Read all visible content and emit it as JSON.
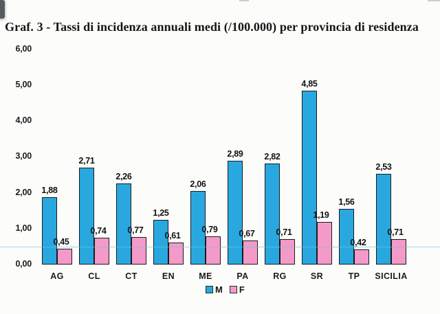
{
  "title": "Graf. 3 - Tassi di incidenza annuali medi (/100.000) per provincia di residenza",
  "colors": {
    "male_bar": "#29a8e0",
    "female_bar": "#f49ac9",
    "bar_outline": "#1a1a1a",
    "reference_line": "#69c4d8",
    "text": "#161616"
  },
  "chart_data": {
    "type": "bar",
    "title": "Graf. 3 - Tassi di incidenza annuali medi (/100.000) per provincia di residenza",
    "categories": [
      "AG",
      "CL",
      "CT",
      "EN",
      "ME",
      "PA",
      "RG",
      "SR",
      "TP",
      "SICILIA"
    ],
    "series": [
      {
        "name": "M",
        "color": "#29a8e0",
        "values": [
          1.88,
          2.71,
          2.26,
          1.25,
          2.06,
          2.89,
          2.82,
          4.85,
          1.56,
          2.53
        ],
        "labels": [
          "1,88",
          "2,71",
          "2,26",
          "1,25",
          "2,06",
          "2,89",
          "2,82",
          "4,85",
          "1,56",
          "2,53"
        ]
      },
      {
        "name": "F",
        "color": "#f49ac9",
        "values": [
          0.45,
          0.74,
          0.77,
          0.61,
          0.79,
          0.67,
          0.71,
          1.19,
          0.42,
          0.71
        ],
        "labels": [
          "0,45",
          "0,74",
          "0,77",
          "0,61",
          "0,79",
          "0,67",
          "0,71",
          "1,19",
          "0,42",
          "0,71"
        ]
      }
    ],
    "y_ticks": {
      "labels": [
        "6,00",
        "5,00",
        "4,00",
        "3,00",
        "2,00",
        "1,00",
        "0,00"
      ],
      "values": [
        6,
        5,
        4,
        3,
        2,
        1,
        0
      ]
    },
    "ylim": [
      0,
      6
    ],
    "xlabel": "",
    "ylabel": "",
    "grid": false,
    "legend": {
      "position": "bottom",
      "entries": [
        "M",
        "F"
      ]
    },
    "reference_line_y": 0.5
  }
}
